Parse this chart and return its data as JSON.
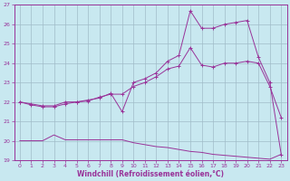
{
  "xlabel": "Windchill (Refroidissement éolien,°C)",
  "xlim": [
    -0.5,
    23.5
  ],
  "ylim": [
    19,
    27
  ],
  "yticks": [
    19,
    20,
    21,
    22,
    23,
    24,
    25,
    26,
    27
  ],
  "xticks": [
    0,
    1,
    2,
    3,
    4,
    5,
    6,
    7,
    8,
    9,
    10,
    11,
    12,
    13,
    14,
    15,
    16,
    17,
    18,
    19,
    20,
    21,
    22,
    23
  ],
  "background_color": "#c8e8f0",
  "line_color": "#993399",
  "grid_color": "#a0bcc8",
  "series": [
    {
      "x": [
        0,
        1,
        2,
        3,
        4,
        5,
        6,
        7,
        8,
        9,
        10,
        11,
        12,
        13,
        14,
        15,
        16,
        17,
        18,
        19,
        20,
        21,
        22,
        23
      ],
      "y": [
        22.0,
        21.9,
        21.8,
        21.8,
        22.0,
        22.0,
        22.1,
        22.2,
        22.45,
        21.5,
        23.0,
        23.2,
        23.5,
        24.1,
        24.4,
        26.7,
        25.8,
        25.8,
        26.0,
        26.1,
        26.2,
        24.3,
        23.0,
        19.3
      ],
      "marker": "+"
    },
    {
      "x": [
        0,
        1,
        2,
        3,
        4,
        5,
        6,
        7,
        8,
        9,
        10,
        11,
        12,
        13,
        14,
        15,
        16,
        17,
        18,
        19,
        20,
        21,
        22,
        23
      ],
      "y": [
        22.0,
        21.85,
        21.75,
        21.75,
        21.9,
        22.0,
        22.05,
        22.25,
        22.4,
        22.4,
        22.8,
        23.0,
        23.3,
        23.7,
        23.85,
        24.8,
        23.9,
        23.8,
        24.0,
        24.0,
        24.1,
        24.0,
        22.8,
        21.2
      ],
      "marker": "+"
    },
    {
      "x": [
        0,
        1,
        2,
        3,
        4,
        5,
        6,
        7,
        8,
        9,
        10,
        11,
        12,
        13,
        14,
        15,
        16,
        17,
        18,
        19,
        20,
        21,
        22,
        23
      ],
      "y": [
        20.0,
        20.0,
        20.0,
        20.3,
        20.05,
        20.05,
        20.05,
        20.05,
        20.05,
        20.05,
        19.9,
        19.8,
        19.7,
        19.65,
        19.55,
        19.45,
        19.4,
        19.3,
        19.25,
        19.2,
        19.15,
        19.1,
        19.05,
        19.3
      ],
      "marker": null
    }
  ]
}
